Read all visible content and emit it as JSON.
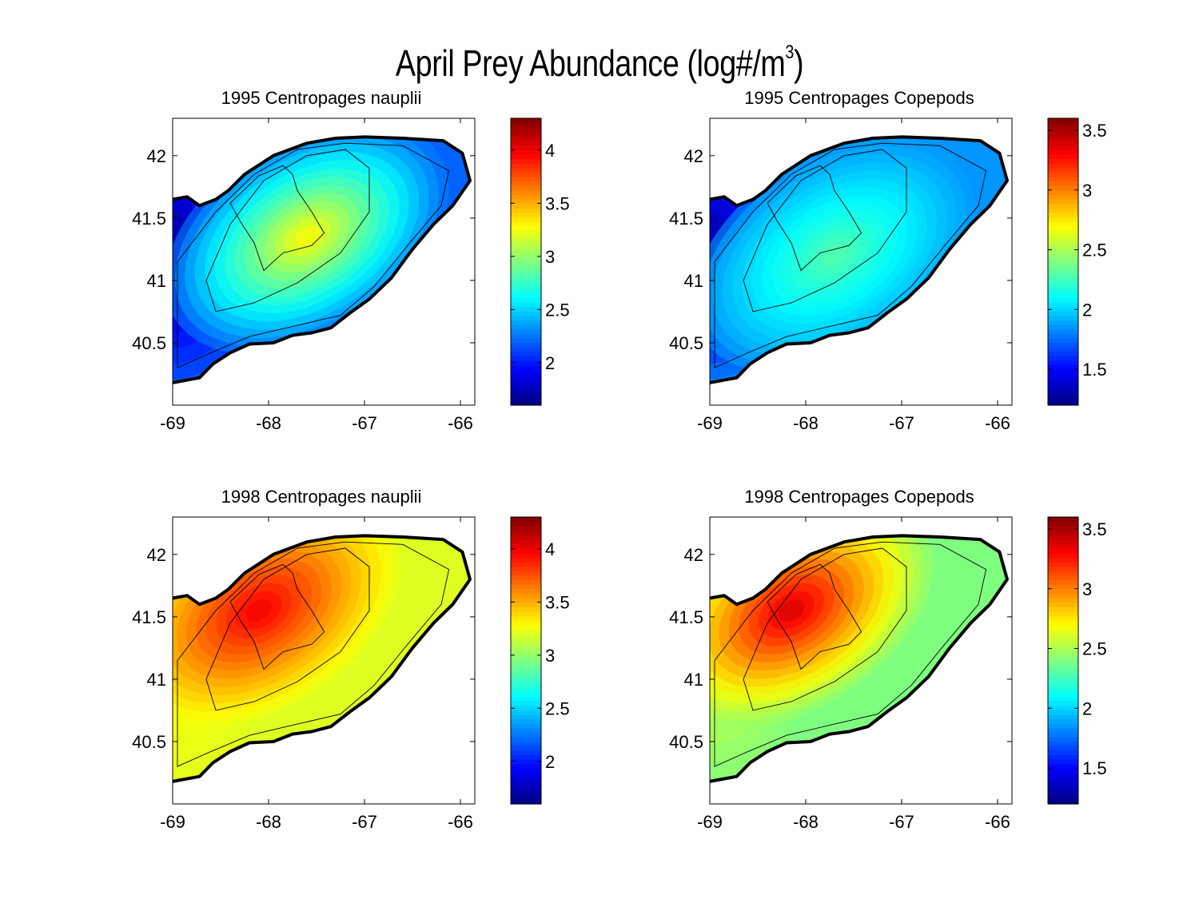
{
  "figure": {
    "title_main": "April Prey Abundance (log#/m",
    "title_sup": "3",
    "title_close": ")"
  },
  "chart_data": [
    {
      "type": "heatmap",
      "title": "1995 Centropages nauplii",
      "x_ticks": [
        "-69",
        "-68",
        "-67",
        "-66"
      ],
      "y_ticks": [
        "40.5",
        "41",
        "41.5",
        "42"
      ],
      "xlim": [
        -69,
        -65.85
      ],
      "ylim": [
        40,
        42.3
      ],
      "colorbar": {
        "range": [
          1.6,
          4.3
        ],
        "ticks": [
          "2",
          "2.5",
          "3",
          "3.5",
          "4"
        ],
        "colormap": "jet"
      },
      "field": {
        "peak_lon": -67.6,
        "peak_lat": 41.35,
        "peak_value": 3.3,
        "background_value": 2.2,
        "west_value": 1.7
      }
    },
    {
      "type": "heatmap",
      "title": "1995 Centropages Copepods",
      "x_ticks": [
        "-69",
        "-68",
        "-67",
        "-66"
      ],
      "y_ticks": [
        "40.5",
        "41",
        "41.5",
        "42"
      ],
      "xlim": [
        -69,
        -65.85
      ],
      "ylim": [
        40,
        42.3
      ],
      "colorbar": {
        "range": [
          1.2,
          3.6
        ],
        "ticks": [
          "1.5",
          "2",
          "2.5",
          "3",
          "3.5"
        ],
        "colormap": "jet"
      },
      "field": {
        "peak_lon": -67.7,
        "peak_lat": 41.2,
        "peak_value": 2.3,
        "background_value": 1.85,
        "west_value": 1.3
      }
    },
    {
      "type": "heatmap",
      "title": "1998 Centropages nauplii",
      "x_ticks": [
        "-69",
        "-68",
        "-67",
        "-66"
      ],
      "y_ticks": [
        "40.5",
        "41",
        "41.5",
        "42"
      ],
      "xlim": [
        -69,
        -65.85
      ],
      "ylim": [
        40,
        42.3
      ],
      "colorbar": {
        "range": [
          1.6,
          4.3
        ],
        "ticks": [
          "2",
          "2.5",
          "3",
          "3.5",
          "4"
        ],
        "colormap": "jet"
      },
      "field": {
        "peak_lon": -68.1,
        "peak_lat": 41.55,
        "peak_value": 4.0,
        "background_value": 3.2,
        "west_value": 3.3
      }
    },
    {
      "type": "heatmap",
      "title": "1998 Centropages Copepods",
      "x_ticks": [
        "-69",
        "-68",
        "-67",
        "-66"
      ],
      "y_ticks": [
        "40.5",
        "41",
        "41.5",
        "42"
      ],
      "xlim": [
        -69,
        -65.85
      ],
      "ylim": [
        40,
        42.3
      ],
      "colorbar": {
        "range": [
          1.2,
          3.6
        ],
        "ticks": [
          "1.5",
          "2",
          "2.5",
          "3",
          "3.5"
        ],
        "colormap": "jet"
      },
      "field": {
        "peak_lon": -68.15,
        "peak_lat": 41.55,
        "peak_value": 3.4,
        "background_value": 2.4,
        "west_value": 2.6
      }
    }
  ]
}
